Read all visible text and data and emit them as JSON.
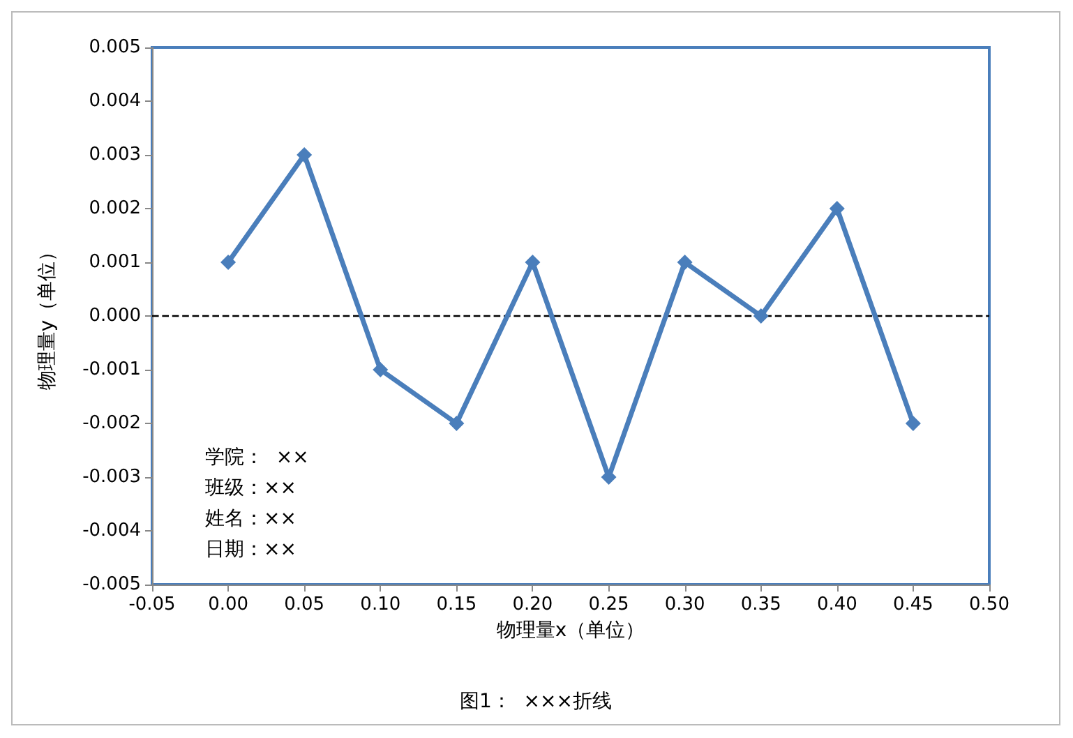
{
  "chart_data": {
    "type": "line",
    "title": "图1：  ×××折线",
    "xlabel": "物理量x（单位）",
    "ylabel": "物理量y（单位）",
    "x": [
      0,
      0.05,
      0.1,
      0.15,
      0.2,
      0.25,
      0.3,
      0.35,
      0.4,
      0.45
    ],
    "series": [
      {
        "color": "#4a7ebb",
        "values": [
          0.001,
          0.003,
          -0.001,
          -0.002,
          0.001,
          -0.003,
          0.001,
          0,
          0.002,
          -0.002
        ]
      }
    ],
    "xlim": [
      -0.05,
      0.5
    ],
    "xticks": [
      {
        "value": -0.05,
        "label": "-0.05"
      },
      {
        "value": 0,
        "label": "0.00"
      },
      {
        "value": 0.05,
        "label": "0.05"
      },
      {
        "value": 0.1,
        "label": "0.10"
      },
      {
        "value": 0.15,
        "label": "0.15"
      },
      {
        "value": 0.2,
        "label": "0.20"
      },
      {
        "value": 0.25,
        "label": "0.25"
      },
      {
        "value": 0.3,
        "label": "0.30"
      },
      {
        "value": 0.35,
        "label": "0.35"
      },
      {
        "value": 0.4,
        "label": "0.40"
      },
      {
        "value": 0.45,
        "label": "0.45"
      },
      {
        "value": 0.5,
        "label": "0.50"
      }
    ],
    "ylim": [
      -0.005,
      0.005
    ],
    "yticks": [
      {
        "value": -0.005,
        "label": "-0.005"
      },
      {
        "value": -0.004,
        "label": "-0.004"
      },
      {
        "value": -0.003,
        "label": "-0.003"
      },
      {
        "value": -0.002,
        "label": "-0.002"
      },
      {
        "value": -0.001,
        "label": "-0.001"
      },
      {
        "value": 0,
        "label": "0.000"
      },
      {
        "value": 0.001,
        "label": "0.001"
      },
      {
        "value": 0.002,
        "label": "0.002"
      },
      {
        "value": 0.003,
        "label": "0.003"
      },
      {
        "value": 0.004,
        "label": "0.004"
      },
      {
        "value": 0.005,
        "label": "0.005"
      }
    ],
    "ref_lines": [
      {
        "axis": "y",
        "value": 0,
        "color": "#000000",
        "line_style": "dashed"
      }
    ],
    "annotations": [
      "学院：  ××",
      "班级：××",
      "姓名：××",
      "日期：××"
    ],
    "grid": false,
    "marker": "diamond",
    "line_style": "solid"
  }
}
